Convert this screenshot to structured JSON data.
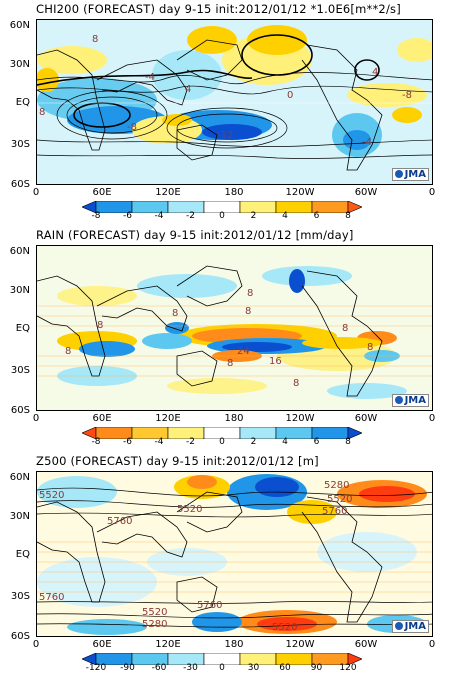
{
  "lat_labels": [
    "60N",
    "30N",
    "EQ",
    "30S",
    "60S"
  ],
  "lon_labels": [
    "0",
    "60E",
    "120E",
    "180",
    "120W",
    "60W",
    "0"
  ],
  "logo": "JMA",
  "panels": [
    {
      "title": "CHI200 (FORECAST) day 9-15 init:2012/01/12  *1.0E6[m**2/s]",
      "colorbar": {
        "ticks": [
          "-8",
          "-6",
          "-4",
          "-2",
          "0",
          "2",
          "4",
          "6",
          "8"
        ],
        "colors": [
          "#0a4fd0",
          "#2196e8",
          "#5cc8f0",
          "#a6e8f8",
          "#ffffff",
          "#fff07a",
          "#ffd000",
          "#ff9a20",
          "#ff5a14"
        ]
      },
      "contour_labels": [
        "-8",
        "8",
        "-4",
        "4",
        "0",
        "-12",
        "-4",
        "4",
        "-8",
        "8"
      ]
    },
    {
      "title": "RAIN (FORECAST) day 9-15 init:2012/01/12   [mm/day]",
      "colorbar": {
        "ticks": [
          "-8",
          "-6",
          "-4",
          "-2",
          "0",
          "2",
          "4",
          "6",
          "8"
        ],
        "colors": [
          "#ff4a10",
          "#ff8c1a",
          "#ffc830",
          "#fff07a",
          "#ffffff",
          "#a6e8f8",
          "#5cc8f0",
          "#2196e8",
          "#0a4fd0"
        ]
      },
      "contour_labels": [
        "8",
        "8",
        "8",
        "8",
        "24",
        "8",
        "16",
        "8",
        "8",
        "8",
        "8"
      ]
    },
    {
      "title": "Z500 (FORECAST) day 9-15 init:2012/01/12   [m]",
      "colorbar": {
        "ticks": [
          "-120",
          "-90",
          "-60",
          "-30",
          "0",
          "30",
          "60",
          "90",
          "120"
        ],
        "colors": [
          "#0a4fd0",
          "#2196e8",
          "#5cc8f0",
          "#a6e8f8",
          "#ffffff",
          "#fff07a",
          "#ffd000",
          "#ff9a20",
          "#ff3c10"
        ]
      },
      "contour_labels": [
        "5520",
        "5520",
        "5760",
        "5280",
        "5520",
        "5760",
        "5760",
        "5520",
        "5280",
        "5760",
        "5520"
      ]
    }
  ]
}
